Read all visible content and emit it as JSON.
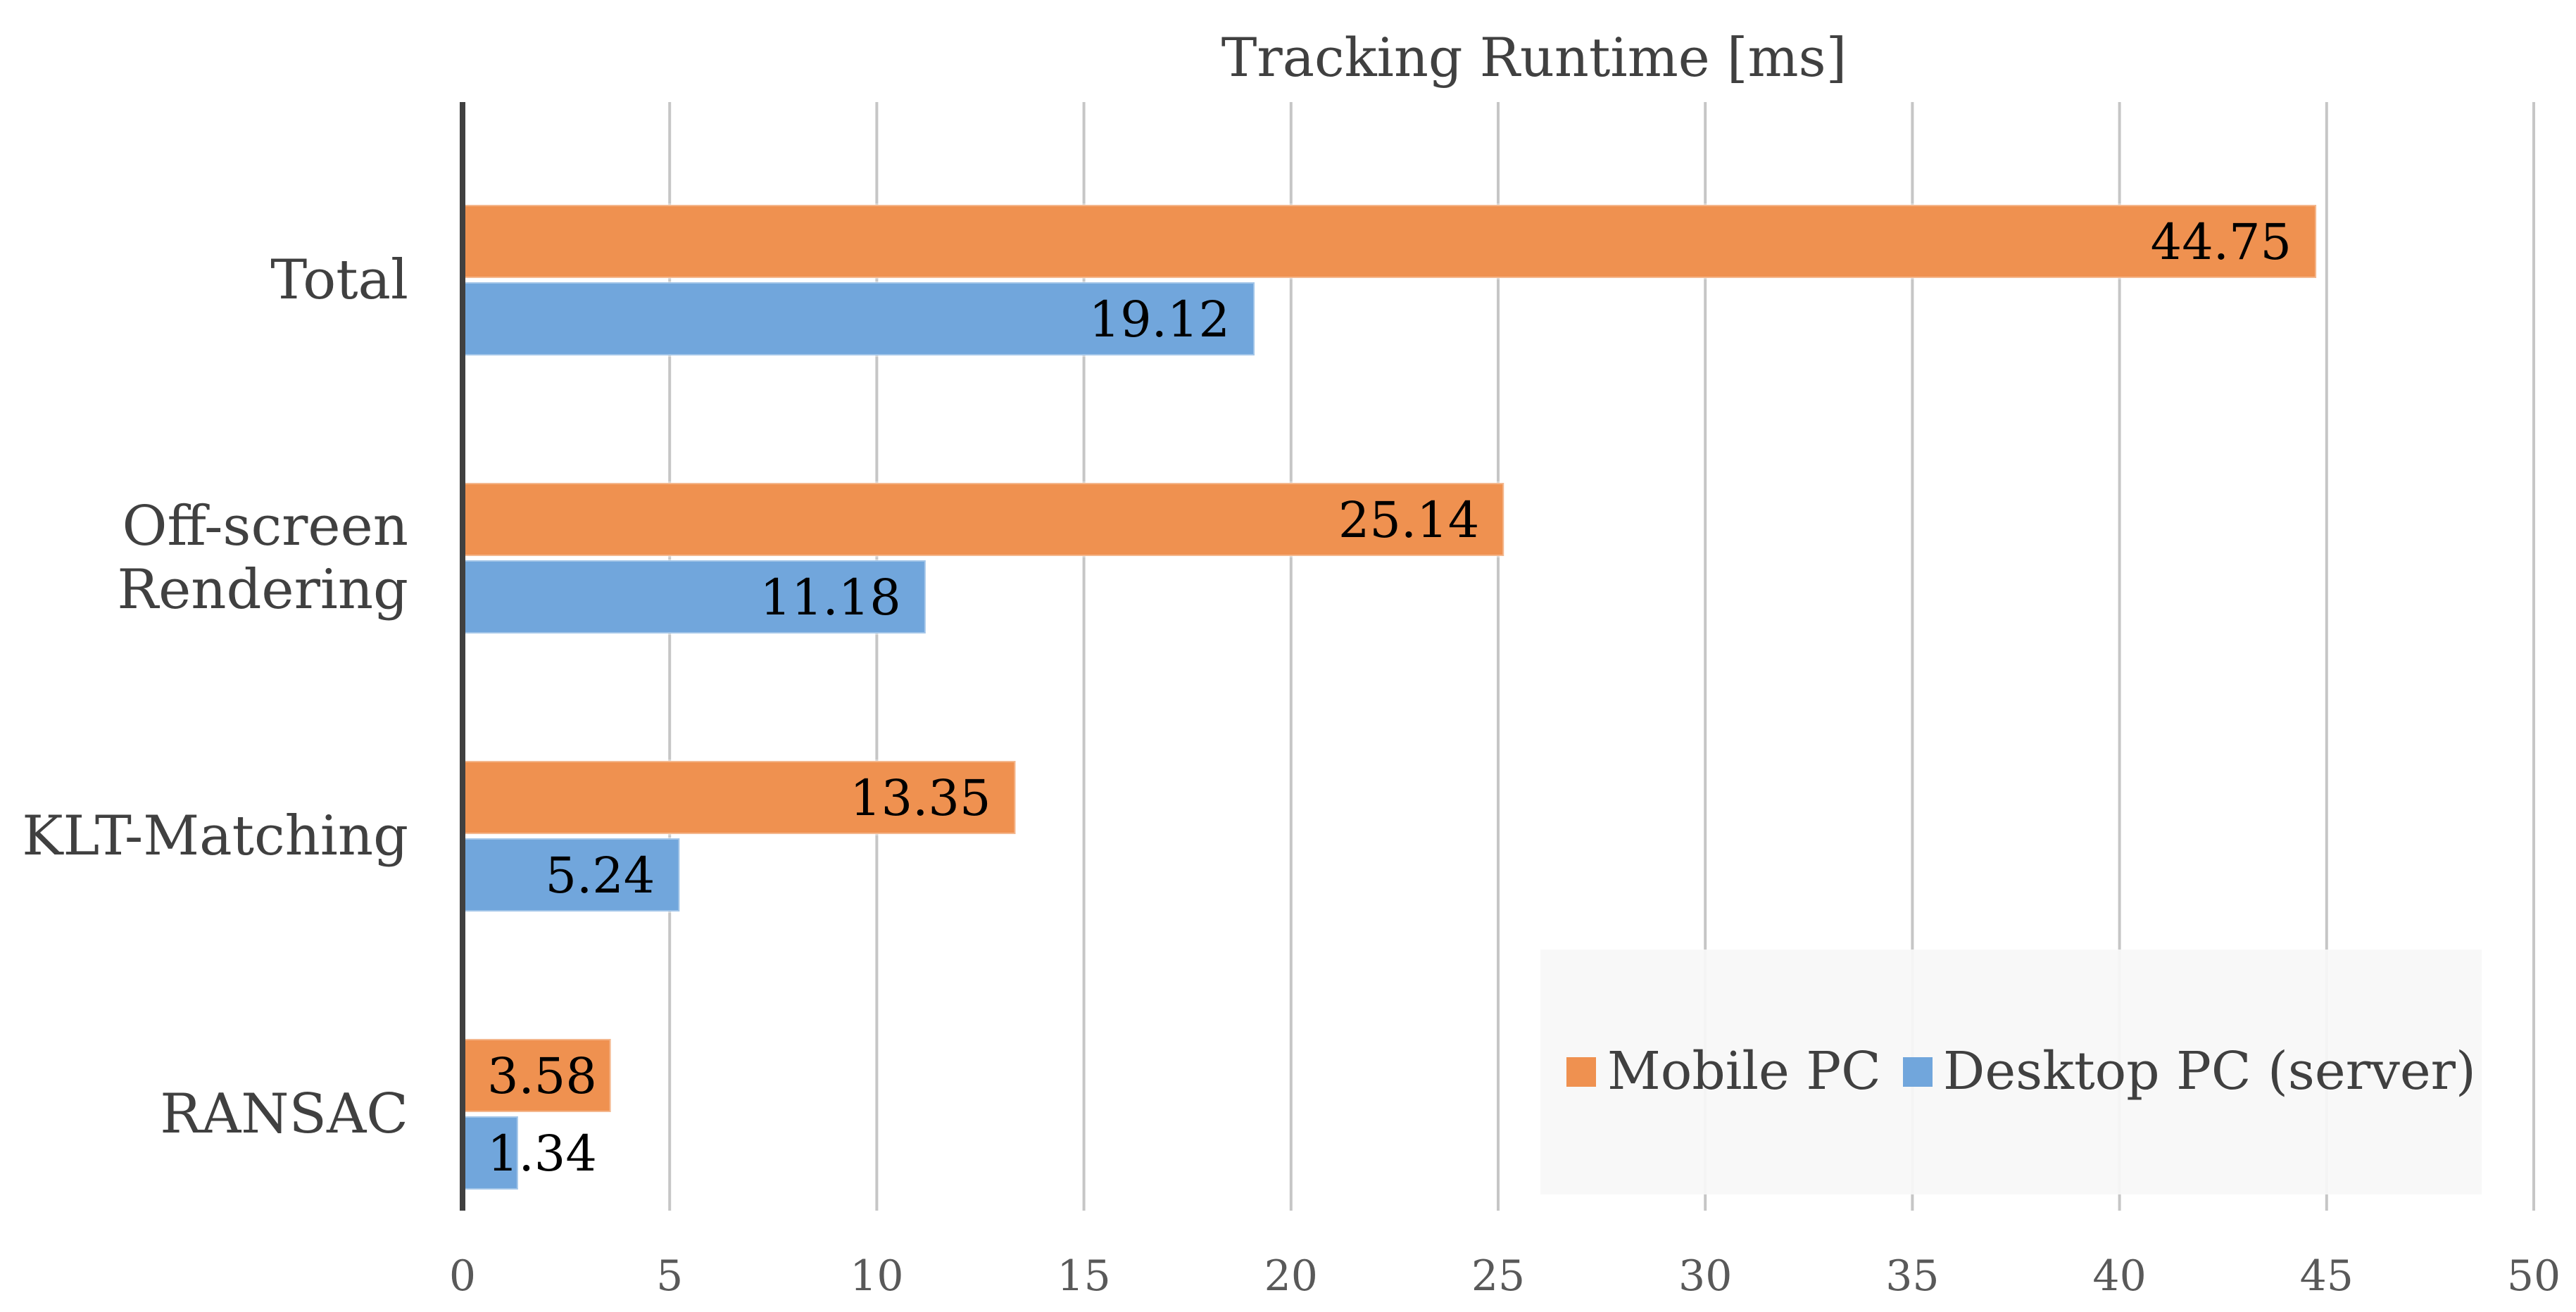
{
  "chart_data": {
    "type": "bar",
    "orientation": "horizontal",
    "title": "Tracking Runtime [ms]",
    "xlabel": "",
    "ylabel": "",
    "xlim": [
      0,
      50
    ],
    "x_ticks": [
      "0",
      "5",
      "10",
      "15",
      "20",
      "25",
      "30",
      "35",
      "40",
      "45",
      "50"
    ],
    "grid": "vertical",
    "legend_position": "bottom-right",
    "categories": [
      [
        "Total"
      ],
      [
        "Off-screen",
        "Rendering"
      ],
      [
        "KLT-Matching"
      ],
      [
        "RANSAC"
      ]
    ],
    "series": [
      {
        "name": "Mobile PC",
        "color": "#ef9150",
        "values": [
          44.75,
          25.14,
          13.35,
          3.58
        ],
        "labels": [
          "44.75",
          "25.14",
          "13.35",
          "3.58"
        ]
      },
      {
        "name": "Desktop PC (server)",
        "color": "#71a6dc",
        "values": [
          19.12,
          11.18,
          5.24,
          1.34
        ],
        "labels": [
          "19.12",
          "11.18",
          "5.24",
          "1.34"
        ]
      }
    ]
  }
}
